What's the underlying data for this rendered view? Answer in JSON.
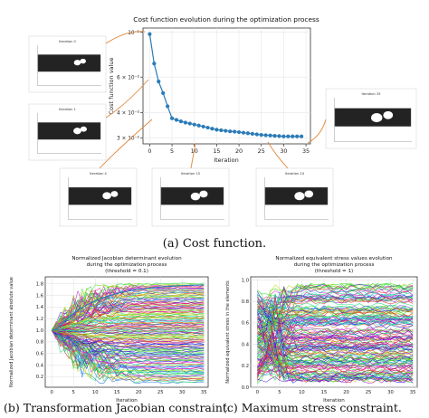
{
  "colors": {
    "series": "#2a7bb7",
    "arrow": "#e0873a",
    "axis": "#333333",
    "grid": "#e6e6e6"
  },
  "captions": {
    "a": "(a) Cost function.",
    "b": "(b) Transformation Jacobian constraint.",
    "c": "(c) Maximum stress constraint."
  },
  "chart_data": [
    {
      "type": "line",
      "title": "Cost function evolution during the optimization process",
      "xlabel": "Iteration",
      "ylabel": "Cost function value",
      "yscale": "log",
      "xlim": [
        -1.5,
        36
      ],
      "ylim": [
        0.028,
        0.105
      ],
      "xticks": [
        0,
        5,
        10,
        15,
        20,
        25,
        30,
        35
      ],
      "yticks": [
        {
          "value": 0.03,
          "label": "3 × 10⁻²"
        },
        {
          "value": 0.04,
          "label": "4 × 10⁻²"
        },
        {
          "value": 0.06,
          "label": "6 × 10⁻²"
        },
        {
          "value": 0.1,
          "label": "10⁻¹"
        }
      ],
      "grid": true,
      "series": [
        {
          "x": [
            0,
            1,
            2,
            3,
            4,
            5,
            6,
            7,
            8,
            9,
            10,
            11,
            12,
            13,
            14,
            15,
            16,
            17,
            18,
            19,
            20,
            21,
            22,
            23,
            24,
            25,
            26,
            27,
            28,
            29,
            30,
            31,
            32,
            33,
            34
          ],
          "y": [
            0.098,
            0.07,
            0.057,
            0.05,
            0.043,
            0.0375,
            0.0368,
            0.0362,
            0.0357,
            0.0353,
            0.0349,
            0.0345,
            0.0341,
            0.0337,
            0.0333,
            0.0329,
            0.0327,
            0.0325,
            0.0323,
            0.0322,
            0.032,
            0.0318,
            0.0316,
            0.0314,
            0.0312,
            0.031,
            0.0309,
            0.0308,
            0.0307,
            0.0306,
            0.0305,
            0.0305,
            0.0305,
            0.0305,
            0.0305
          ]
        }
      ],
      "thumbnails": [
        {
          "title": "Iteration 0"
        },
        {
          "title": "Iteration 1"
        },
        {
          "title": "Iteration 4"
        },
        {
          "title": "Iteration 15"
        },
        {
          "title": "Iteration 24"
        },
        {
          "title": "Iteration 35"
        }
      ]
    },
    {
      "type": "line",
      "title": "Normalized Jacobian determinant evolution\nduring the optimization process\n(threshold = 0.1)",
      "xlabel": "Iteration",
      "ylabel": "Normalized Jacobian determinant absolute value",
      "xlim": [
        -1.5,
        36
      ],
      "ylim": [
        0.02,
        1.92
      ],
      "xticks": [
        0,
        5,
        10,
        15,
        20,
        25,
        30,
        35
      ],
      "yticks": [
        0.2,
        0.4,
        0.6,
        0.8,
        1.0,
        1.2,
        1.4,
        1.6,
        1.8
      ],
      "grid": true,
      "note": "Hundreds of colored element curves all starting at 1.0 at iteration 0; upper envelope (blue) rises to ~1.8, lower envelope drops to ~0.1."
    },
    {
      "type": "line",
      "title": "Normalized equivalent stress values evolution\nduring the optimization process\n(threshold = 1)",
      "xlabel": "Iteration",
      "ylabel": "Normalized equivalent stress in the elements",
      "xlim": [
        -1.5,
        36
      ],
      "ylim": [
        0,
        1.03
      ],
      "xticks": [
        0,
        5,
        10,
        15,
        20,
        25,
        30,
        35
      ],
      "yticks": [
        0.0,
        0.2,
        0.4,
        0.6,
        0.8,
        1.0
      ],
      "grid": true,
      "note": "Hundreds of colored element curves spread between 0 and 1 across all iterations, all remaining below the threshold of 1."
    }
  ]
}
